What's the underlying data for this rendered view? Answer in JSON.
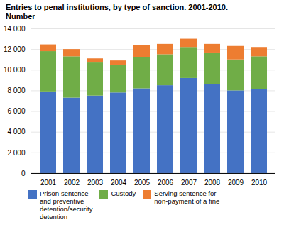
{
  "chart_data": {
    "type": "bar",
    "stacked": true,
    "title": "Entries to penal institutions, by type of sanction. 2001-2010.\nNumber",
    "categories": [
      "2001",
      "2002",
      "2003",
      "2004",
      "2005",
      "2006",
      "2007",
      "2008",
      "2009",
      "2010"
    ],
    "series": [
      {
        "name": "Prison-sentence\nand preventive\ndetention/security\ndetention",
        "color": "#4472C4",
        "values": [
          7900,
          7300,
          7500,
          7800,
          8200,
          8500,
          9200,
          8600,
          8000,
          8100
        ]
      },
      {
        "name": "Custody",
        "color": "#70AD47",
        "values": [
          3900,
          4000,
          3200,
          2700,
          3000,
          3000,
          3000,
          3000,
          3000,
          3200
        ]
      },
      {
        "name": "Serving sentence for\nnon-payment of a fine",
        "color": "#ED7D31",
        "values": [
          650,
          700,
          400,
          400,
          1200,
          1000,
          800,
          900,
          1300,
          900
        ]
      }
    ],
    "ylim": [
      0,
      14000
    ],
    "yticks": [
      0,
      {
        "value": 2000,
        "label": "2 000"
      },
      {
        "value": 4000,
        "label": "4 000"
      },
      {
        "value": 6000,
        "label": "6 000"
      },
      {
        "value": 8000,
        "label": "8 000"
      },
      {
        "value": 10000,
        "label": "10 000"
      },
      {
        "value": 12000,
        "label": "12 000"
      },
      {
        "value": 14000,
        "label": "14 000"
      }
    ],
    "grid": true,
    "legend": "bottom"
  }
}
